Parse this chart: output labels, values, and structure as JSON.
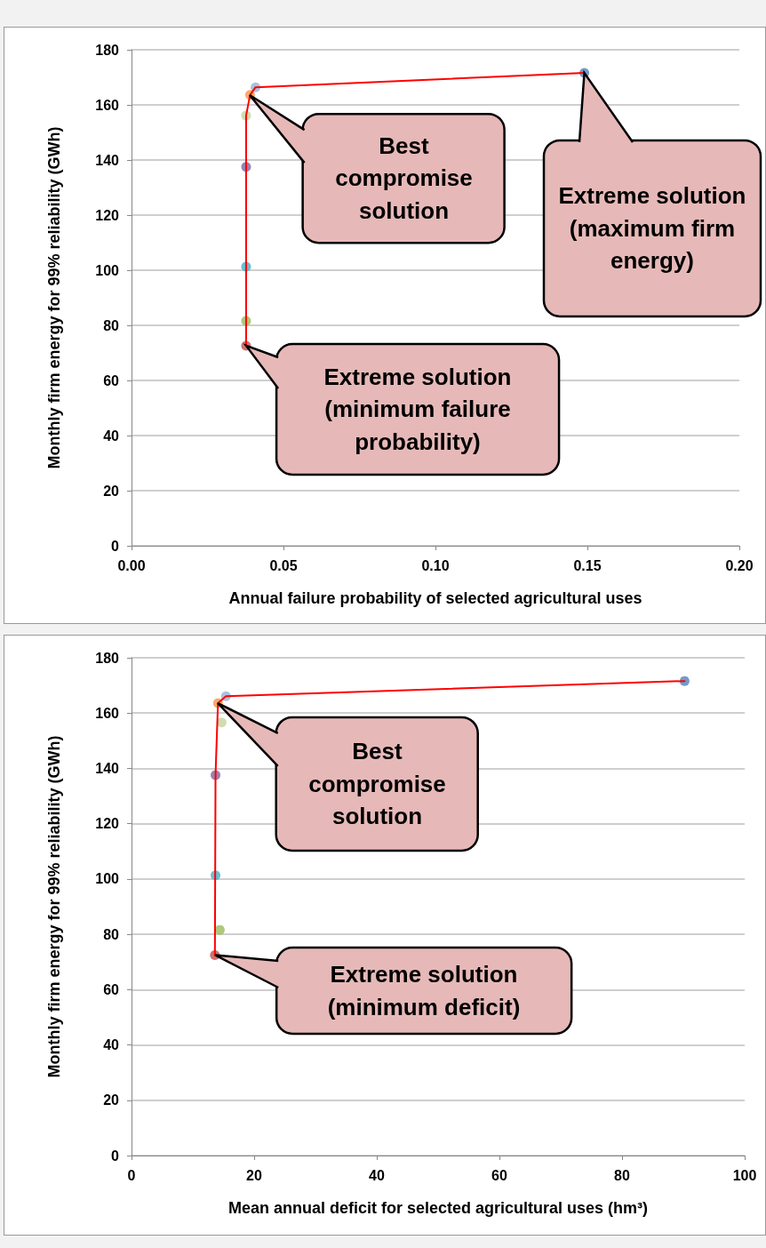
{
  "chart_data": [
    {
      "type": "scatter",
      "xlabel": "Annual failure probability of selected agricultural uses",
      "ylabel": "Monthly firm energy for 99% reliability (GWh)",
      "xlim": [
        0,
        0.2
      ],
      "xticks": [
        {
          "value": 0,
          "label": "0.00"
        },
        {
          "value": 0.05,
          "label": "0.05"
        },
        {
          "value": 0.1,
          "label": "0.10"
        },
        {
          "value": 0.15,
          "label": "0.15"
        },
        {
          "value": 0.2,
          "label": "0.20"
        }
      ],
      "ylim": [
        0,
        180
      ],
      "yticks": [
        0,
        20,
        40,
        60,
        80,
        100,
        120,
        140,
        160,
        180
      ],
      "grid": "y",
      "series": [
        {
          "type": "line",
          "color": "#ff0000",
          "marker": "none",
          "line_style": "solid",
          "x": [
            0.0377,
            0.0377,
            0.039,
            0.0408,
            0.149
          ],
          "values": [
            72.6,
            156.1,
            163.6,
            166.4,
            171.6
          ]
        },
        {
          "type": "scatter",
          "marker": "circle",
          "x": [
            0.0377,
            0.0377,
            0.0377,
            0.0377,
            0.0377,
            0.039,
            0.0408,
            0.149
          ],
          "values": [
            72.6,
            81.6,
            101.3,
            137.5,
            156.1,
            163.6,
            166.4,
            171.6
          ],
          "colors": [
            "#c0504d",
            "#9bbb59",
            "#4bacc6",
            "#8064a2",
            "#c3d69b",
            "#f79646",
            "#95b3d7",
            "#4f81bd"
          ]
        }
      ],
      "annotations": [
        "Best compromise solution",
        "Extreme solution (maximum firm energy)",
        "Extreme solution (minimum failure probability)"
      ]
    },
    {
      "type": "scatter",
      "xlabel": "Mean annual deficit for selected agricultural uses (hm³)",
      "ylabel": "Monthly firm energy for 99% reliability (GWh)",
      "xlim": [
        0,
        100
      ],
      "xticks": [
        0,
        20,
        40,
        60,
        80,
        100
      ],
      "ylim": [
        0,
        180
      ],
      "yticks": [
        0,
        20,
        40,
        60,
        80,
        100,
        120,
        140,
        160,
        180
      ],
      "grid": "y",
      "series": [
        {
          "type": "line",
          "color": "#ff0000",
          "marker": "none",
          "line_style": "solid",
          "x": [
            13.6,
            13.7,
            14.1,
            15.4,
            90.2
          ],
          "values": [
            72.5,
            137.6,
            163.6,
            166.1,
            171.6
          ]
        },
        {
          "type": "scatter",
          "marker": "circle",
          "x": [
            13.6,
            14.4,
            13.7,
            13.7,
            14.7,
            14.1,
            15.4,
            90.2
          ],
          "values": [
            72.5,
            81.6,
            101.3,
            137.6,
            156.6,
            163.6,
            166.1,
            171.6
          ],
          "colors": [
            "#c0504d",
            "#9bbb59",
            "#4bacc6",
            "#8064a2",
            "#c3d69b",
            "#f79646",
            "#95b3d7",
            "#4f81bd"
          ]
        }
      ],
      "annotations": [
        "Best compromise solution",
        "Extreme solution (minimum deficit)"
      ]
    }
  ]
}
